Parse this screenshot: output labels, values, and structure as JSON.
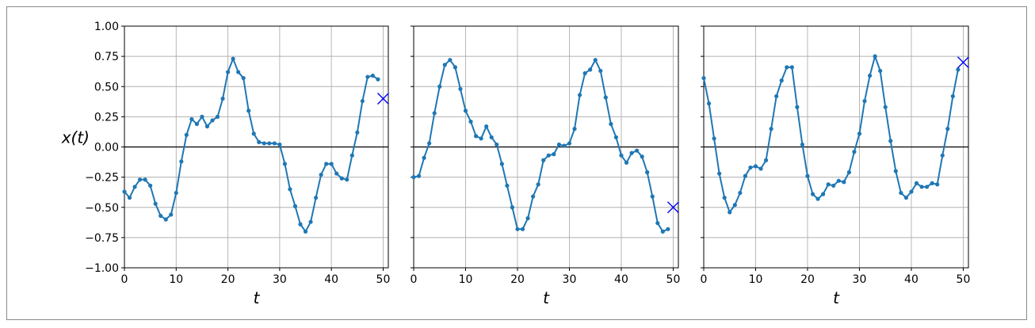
{
  "chart_data": [
    {
      "type": "line",
      "xlabel": "t",
      "ylabel": "x(t)",
      "xlim": [
        0,
        51
      ],
      "ylim": [
        -1.0,
        1.0
      ],
      "xticks": [
        0,
        10,
        20,
        30,
        40,
        50
      ],
      "yticks": [
        -1.0,
        -0.75,
        -0.5,
        -0.25,
        0.0,
        0.25,
        0.5,
        0.75,
        1.0
      ],
      "ytick_labels": [
        "−1.00",
        "−0.75",
        "−0.50",
        "−0.25",
        "0.00",
        "0.25",
        "0.50",
        "0.75",
        "1.00"
      ],
      "grid": true,
      "x": [
        0,
        1,
        2,
        3,
        4,
        5,
        6,
        7,
        8,
        9,
        10,
        11,
        12,
        13,
        14,
        15,
        16,
        17,
        18,
        19,
        20,
        21,
        22,
        23,
        24,
        25,
        26,
        27,
        28,
        29,
        30,
        31,
        32,
        33,
        34,
        35,
        36,
        37,
        38,
        39,
        40,
        41,
        42,
        43,
        44,
        45,
        46,
        47,
        48,
        49
      ],
      "values": [
        -0.37,
        -0.42,
        -0.33,
        -0.27,
        -0.27,
        -0.32,
        -0.47,
        -0.57,
        -0.6,
        -0.56,
        -0.38,
        -0.12,
        0.1,
        0.23,
        0.19,
        0.25,
        0.17,
        0.22,
        0.25,
        0.4,
        0.62,
        0.73,
        0.62,
        0.57,
        0.3,
        0.11,
        0.04,
        0.03,
        0.03,
        0.03,
        0.02,
        -0.14,
        -0.35,
        -0.49,
        -0.64,
        -0.7,
        -0.62,
        -0.42,
        -0.23,
        -0.14,
        -0.14,
        -0.22,
        -0.26,
        -0.27,
        -0.07,
        0.12,
        0.38,
        0.58,
        0.59,
        0.56
      ],
      "target": {
        "x": 50,
        "y": 0.4
      }
    },
    {
      "type": "line",
      "xlabel": "t",
      "ylabel": "",
      "xlim": [
        0,
        51
      ],
      "ylim": [
        -1.0,
        1.0
      ],
      "xticks": [
        0,
        10,
        20,
        30,
        40,
        50
      ],
      "grid": true,
      "x": [
        0,
        1,
        2,
        3,
        4,
        5,
        6,
        7,
        8,
        9,
        10,
        11,
        12,
        13,
        14,
        15,
        16,
        17,
        18,
        19,
        20,
        21,
        22,
        23,
        24,
        25,
        26,
        27,
        28,
        29,
        30,
        31,
        32,
        33,
        34,
        35,
        36,
        37,
        38,
        39,
        40,
        41,
        42,
        43,
        44,
        45,
        46,
        47,
        48,
        49
      ],
      "values": [
        -0.25,
        -0.24,
        -0.09,
        0.03,
        0.28,
        0.5,
        0.68,
        0.72,
        0.66,
        0.48,
        0.3,
        0.21,
        0.09,
        0.07,
        0.17,
        0.08,
        0.02,
        -0.14,
        -0.32,
        -0.5,
        -0.68,
        -0.68,
        -0.59,
        -0.41,
        -0.31,
        -0.11,
        -0.07,
        -0.06,
        0.02,
        0.01,
        0.03,
        0.15,
        0.43,
        0.61,
        0.64,
        0.72,
        0.63,
        0.41,
        0.19,
        0.08,
        -0.07,
        -0.13,
        -0.05,
        -0.03,
        -0.08,
        -0.21,
        -0.41,
        -0.63,
        -0.7,
        -0.68
      ],
      "target": {
        "x": 50,
        "y": -0.5
      }
    },
    {
      "type": "line",
      "xlabel": "t",
      "ylabel": "",
      "xlim": [
        0,
        51
      ],
      "ylim": [
        -1.0,
        1.0
      ],
      "xticks": [
        0,
        10,
        20,
        30,
        40,
        50
      ],
      "grid": true,
      "x": [
        0,
        1,
        2,
        3,
        4,
        5,
        6,
        7,
        8,
        9,
        10,
        11,
        12,
        13,
        14,
        15,
        16,
        17,
        18,
        19,
        20,
        21,
        22,
        23,
        24,
        25,
        26,
        27,
        28,
        29,
        30,
        31,
        32,
        33,
        34,
        35,
        36,
        37,
        38,
        39,
        40,
        41,
        42,
        43,
        44,
        45,
        46,
        47,
        48,
        49
      ],
      "values": [
        0.57,
        0.36,
        0.07,
        -0.22,
        -0.42,
        -0.54,
        -0.48,
        -0.38,
        -0.24,
        -0.17,
        -0.16,
        -0.18,
        -0.11,
        0.15,
        0.42,
        0.55,
        0.66,
        0.66,
        0.33,
        0.02,
        -0.24,
        -0.39,
        -0.43,
        -0.39,
        -0.31,
        -0.32,
        -0.28,
        -0.29,
        -0.21,
        -0.04,
        0.11,
        0.38,
        0.59,
        0.75,
        0.63,
        0.33,
        0.05,
        -0.2,
        -0.38,
        -0.42,
        -0.37,
        -0.3,
        -0.33,
        -0.33,
        -0.3,
        -0.31,
        -0.07,
        0.15,
        0.42,
        0.64
      ],
      "target": {
        "x": 50,
        "y": 0.7
      }
    }
  ]
}
